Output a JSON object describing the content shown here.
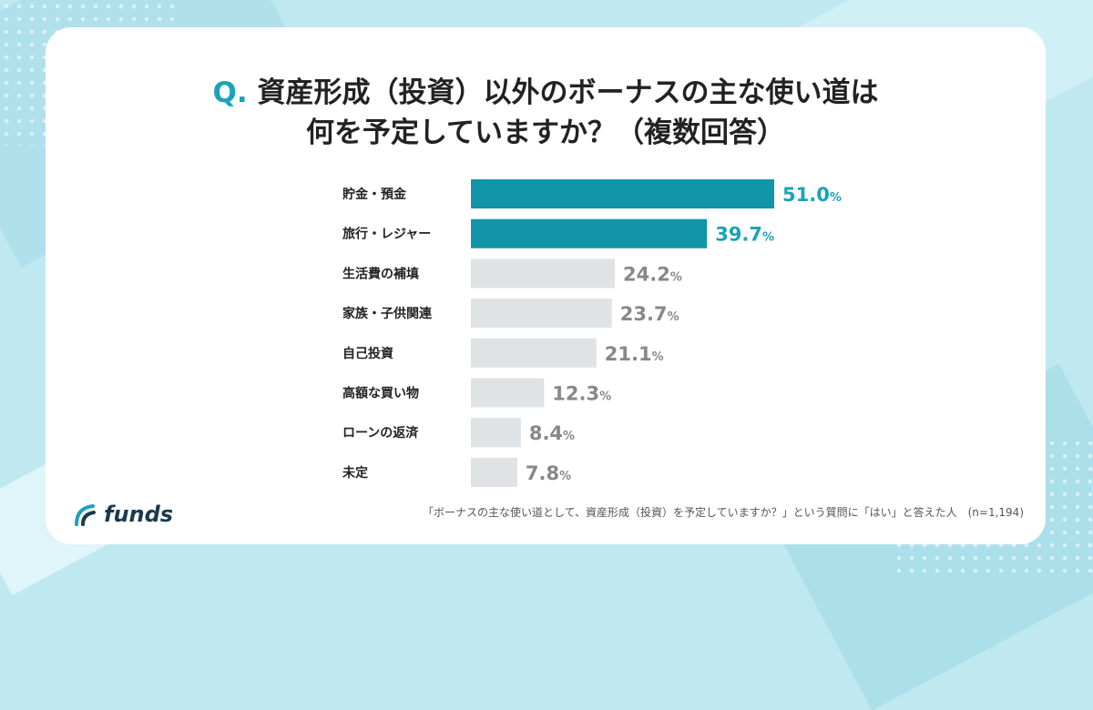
{
  "title": {
    "q": "Q.",
    "line1": "資産形成（投資）以外のボーナスの主な使い道は",
    "line2": "何を予定していますか？（複数回答）"
  },
  "colors": {
    "highlight": "#1195a8",
    "muted": "#dfe3e6",
    "highlight_text": "#1aa3b8",
    "muted_text": "#888888"
  },
  "chart_data": {
    "type": "bar",
    "orientation": "horizontal",
    "categories": [
      "貯金・預金",
      "旅行・レジャー",
      "生活費の補填",
      "家族・子供関連",
      "自己投資",
      "高額な買い物",
      "ローンの返済",
      "未定"
    ],
    "values": [
      51.0,
      39.7,
      24.2,
      23.7,
      21.1,
      12.3,
      8.4,
      7.8
    ],
    "highlighted": [
      true,
      true,
      false,
      false,
      false,
      false,
      false,
      false
    ],
    "unit": "%",
    "xlim": [
      0,
      51.0
    ]
  },
  "logo": {
    "text": "funds"
  },
  "footnote": "「ボーナスの主な使い道として、資産形成（投資）を予定していますか？」という質問に「はい」と答えた人　(n=1,194)"
}
